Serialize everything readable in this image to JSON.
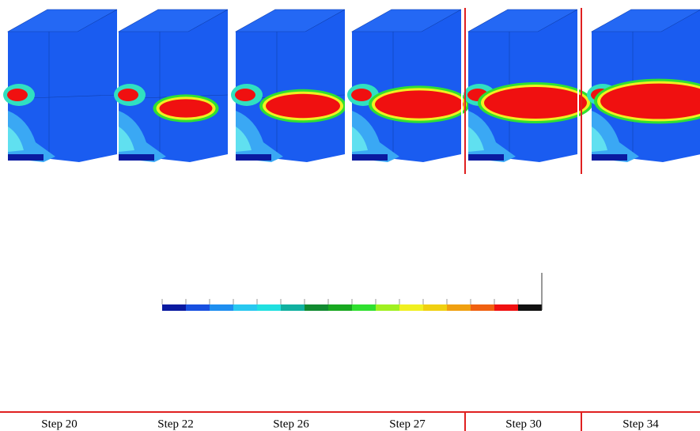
{
  "steps": [
    "Step 20",
    "Step 22",
    "Step 26",
    "Step 27",
    "Step 30",
    "Step 34"
  ],
  "colorbar": {
    "colors": [
      "#0a1aa0",
      "#1850e0",
      "#1e8ef0",
      "#28c8f0",
      "#20e0e0",
      "#10b0a0",
      "#108a30",
      "#18a820",
      "#30e030",
      "#a0f020",
      "#f0f020",
      "#f0d010",
      "#f0a010",
      "#f06010",
      "#f01010",
      "#101010"
    ]
  }
}
